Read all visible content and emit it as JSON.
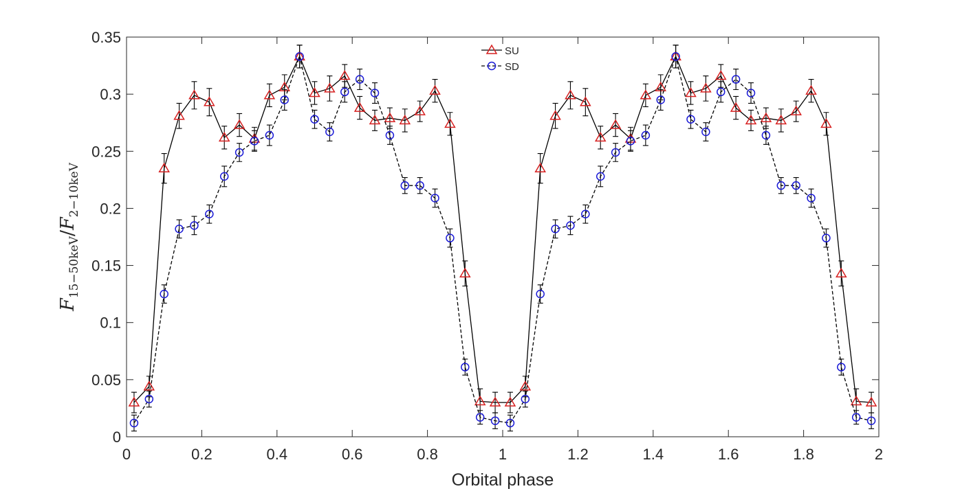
{
  "chart_data": {
    "type": "line",
    "xlabel": "Orbital phase",
    "ylabel": {
      "var": "F",
      "num_sub": "15−50keV",
      "den_sub": "2−10keV",
      "slash": "/"
    },
    "xlim": [
      0,
      2
    ],
    "ylim": [
      0,
      0.35
    ],
    "xticks": [
      0,
      0.2,
      0.4,
      0.6,
      0.8,
      1,
      1.2,
      1.4,
      1.6,
      1.8,
      2
    ],
    "xtick_labels": [
      "0",
      "0.2",
      "0.4",
      "0.6",
      "0.8",
      "1",
      "1.2",
      "1.4",
      "1.6",
      "1.8",
      "2"
    ],
    "yticks": [
      0,
      0.05,
      0.1,
      0.15,
      0.2,
      0.25,
      0.3,
      0.35
    ],
    "ytick_labels": [
      "0",
      "0.05",
      "0.1",
      "0.15",
      "0.2",
      "0.25",
      "0.3",
      "0.35"
    ],
    "grid": false,
    "legend": "top-center",
    "x": [
      0.02,
      0.06,
      0.1,
      0.14,
      0.18,
      0.22,
      0.26,
      0.3,
      0.34,
      0.38,
      0.42,
      0.46,
      0.5,
      0.54,
      0.58,
      0.62,
      0.66,
      0.7,
      0.74,
      0.78,
      0.82,
      0.86,
      0.9,
      0.94,
      0.98,
      1.02,
      1.06,
      1.1,
      1.14,
      1.18,
      1.22,
      1.26,
      1.3,
      1.34,
      1.38,
      1.42,
      1.46,
      1.5,
      1.54,
      1.58,
      1.62,
      1.66,
      1.7,
      1.74,
      1.78,
      1.82,
      1.86,
      1.9,
      1.94,
      1.98
    ],
    "series": [
      {
        "name": "SU",
        "color": "#d62020",
        "marker": "triangle",
        "line": "solid",
        "line_color": "#000000",
        "values": [
          0.03,
          0.044,
          0.235,
          0.281,
          0.299,
          0.293,
          0.262,
          0.273,
          0.261,
          0.299,
          0.306,
          0.333,
          0.301,
          0.305,
          0.316,
          0.288,
          0.277,
          0.279,
          0.277,
          0.285,
          0.303,
          0.274,
          0.143,
          0.031,
          0.03,
          0.03,
          0.044,
          0.235,
          0.281,
          0.299,
          0.293,
          0.262,
          0.273,
          0.261,
          0.299,
          0.306,
          0.333,
          0.301,
          0.305,
          0.316,
          0.288,
          0.277,
          0.279,
          0.277,
          0.285,
          0.303,
          0.274,
          0.143,
          0.031,
          0.03
        ],
        "errors": [
          0.009,
          0.009,
          0.013,
          0.011,
          0.012,
          0.012,
          0.01,
          0.01,
          0.01,
          0.01,
          0.011,
          0.01,
          0.01,
          0.011,
          0.01,
          0.01,
          0.009,
          0.009,
          0.01,
          0.009,
          0.01,
          0.01,
          0.011,
          0.011,
          0.009,
          0.009,
          0.009,
          0.013,
          0.011,
          0.012,
          0.012,
          0.01,
          0.01,
          0.01,
          0.01,
          0.011,
          0.01,
          0.01,
          0.011,
          0.01,
          0.01,
          0.009,
          0.009,
          0.01,
          0.009,
          0.01,
          0.01,
          0.011,
          0.011,
          0.009
        ]
      },
      {
        "name": "SD",
        "color": "#1a1ad6",
        "marker": "circle",
        "line": "dashed",
        "line_color": "#000000",
        "values": [
          0.012,
          0.033,
          0.125,
          0.182,
          0.185,
          0.195,
          0.228,
          0.249,
          0.259,
          0.264,
          0.295,
          0.333,
          0.278,
          0.267,
          0.302,
          0.313,
          0.301,
          0.264,
          0.22,
          0.22,
          0.209,
          0.174,
          0.061,
          0.017,
          0.014,
          0.012,
          0.033,
          0.125,
          0.182,
          0.185,
          0.195,
          0.228,
          0.249,
          0.259,
          0.264,
          0.295,
          0.333,
          0.278,
          0.267,
          0.302,
          0.313,
          0.301,
          0.264,
          0.22,
          0.22,
          0.209,
          0.174,
          0.061,
          0.017,
          0.014
        ],
        "errors": [
          0.007,
          0.007,
          0.008,
          0.008,
          0.008,
          0.008,
          0.009,
          0.008,
          0.009,
          0.009,
          0.009,
          0.01,
          0.008,
          0.008,
          0.009,
          0.009,
          0.009,
          0.008,
          0.007,
          0.007,
          0.008,
          0.008,
          0.007,
          0.006,
          0.007,
          0.007,
          0.007,
          0.008,
          0.008,
          0.008,
          0.008,
          0.009,
          0.008,
          0.009,
          0.009,
          0.009,
          0.01,
          0.008,
          0.008,
          0.009,
          0.009,
          0.009,
          0.008,
          0.007,
          0.007,
          0.008,
          0.008,
          0.007,
          0.006,
          0.007
        ]
      }
    ]
  }
}
